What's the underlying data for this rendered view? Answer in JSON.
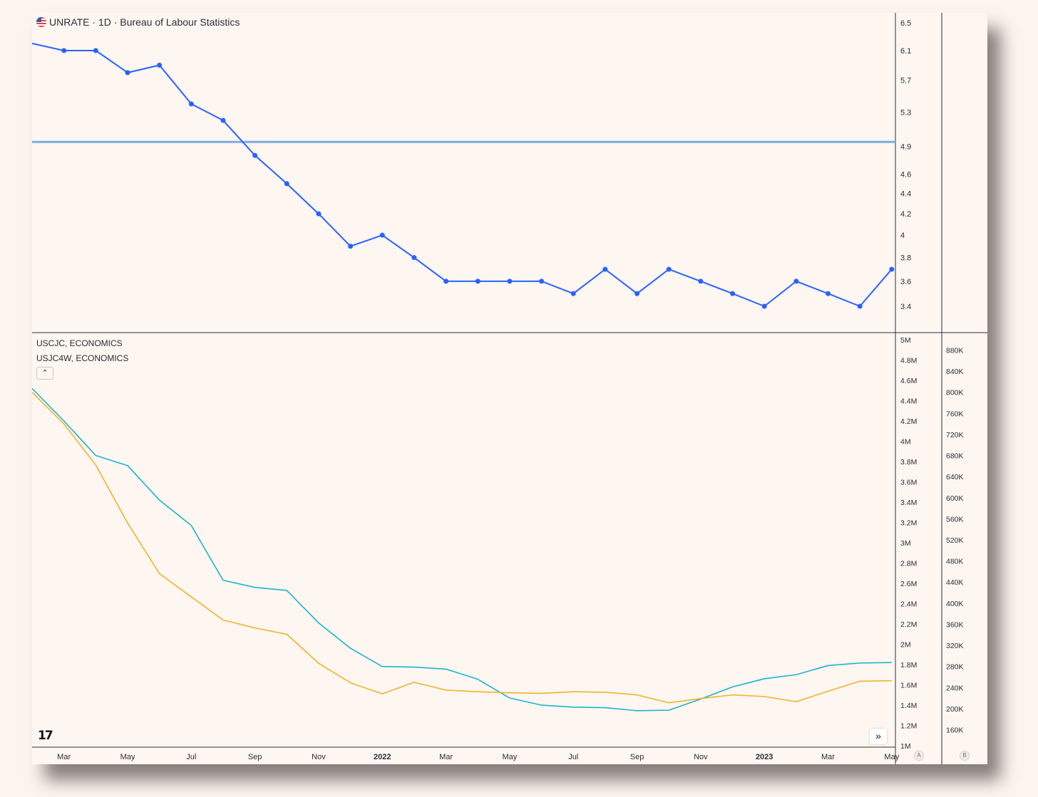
{
  "header": {
    "title": "UNRATE · 1D · Bureau of Labour Statistics",
    "legend_1": "USCJC, ECONOMICS",
    "legend_2": "USJC4W, ECONOMICS",
    "collapse_icon": "chevron-up-icon",
    "logo_text": "17",
    "scroll_icon": "double-chevron-right-icon"
  },
  "axis_buttons": {
    "a": "A",
    "b": "B"
  },
  "chart_data": [
    {
      "type": "line",
      "title": "UNRATE · 1D · Bureau of Labour Statistics",
      "x": [
        "2021-02",
        "2021-03",
        "2021-04",
        "2021-05",
        "2021-06",
        "2021-07",
        "2021-08",
        "2021-09",
        "2021-10",
        "2021-11",
        "2021-12",
        "2022-01",
        "2022-02",
        "2022-03",
        "2022-04",
        "2022-05",
        "2022-06",
        "2022-07",
        "2022-08",
        "2022-09",
        "2022-10",
        "2022-11",
        "2022-12",
        "2023-01",
        "2023-02",
        "2023-03",
        "2023-04",
        "2023-05"
      ],
      "series": [
        {
          "values": [
            6.2,
            6.1,
            6.1,
            5.8,
            5.9,
            5.4,
            5.2,
            4.8,
            4.5,
            4.2,
            3.9,
            4.0,
            3.8,
            3.6,
            3.6,
            3.6,
            3.6,
            3.5,
            3.7,
            3.5,
            3.7,
            3.6,
            3.5,
            3.4,
            3.6,
            3.5,
            3.4,
            3.7
          ],
          "color": "#2962ff",
          "markers": true
        }
      ],
      "horizontal_line": {
        "value": 4.95,
        "color": "#7aaee0"
      },
      "yticks": [
        6.5,
        6.1,
        5.7,
        5.3,
        4.9,
        4.6,
        4.4,
        4.2,
        4,
        3.8,
        3.6,
        3.4
      ],
      "scale": "log",
      "ylim": [
        3.2,
        6.6
      ],
      "grid": false
    },
    {
      "type": "line",
      "legend": [
        "USCJC, ECONOMICS",
        "USJC4W, ECONOMICS"
      ],
      "x": [
        "2021-02",
        "2021-03",
        "2021-04",
        "2021-05",
        "2021-06",
        "2021-07",
        "2021-08",
        "2021-09",
        "2021-10",
        "2021-11",
        "2021-12",
        "2022-01",
        "2022-02",
        "2022-03",
        "2022-04",
        "2022-05",
        "2022-06",
        "2022-07",
        "2022-08",
        "2022-09",
        "2022-10",
        "2022-11",
        "2022-12",
        "2023-01",
        "2023-02",
        "2023-03",
        "2023-04",
        "2023-05"
      ],
      "series": [
        {
          "axis": "left",
          "color": "#1db4c8",
          "values": [
            4520000,
            4200000,
            3860000,
            3760000,
            3420000,
            3170000,
            2630000,
            2560000,
            2530000,
            2210000,
            1960000,
            1780000,
            1775000,
            1755000,
            1655000,
            1470000,
            1400000,
            1380000,
            1375000,
            1345000,
            1350000,
            1460000,
            1580000,
            1660000,
            1700000,
            1790000,
            1815000,
            1820000
          ]
        },
        {
          "axis": "right",
          "color": "#f0b429",
          "values": [
            800000,
            740000,
            662000,
            552000,
            456000,
            412000,
            368000,
            353000,
            341000,
            286000,
            249000,
            228000,
            250000,
            235000,
            232000,
            230000,
            229000,
            232000,
            231000,
            226000,
            211000,
            219000,
            226000,
            223000,
            213000,
            233000,
            252000,
            253000
          ]
        }
      ],
      "yticks_left": [
        "5M",
        "4.8M",
        "4.6M",
        "4.4M",
        "4.2M",
        "4M",
        "3.8M",
        "3.6M",
        "3.4M",
        "3.2M",
        "3M",
        "2.8M",
        "2.6M",
        "2.4M",
        "2.2M",
        "2M",
        "1.8M",
        "1.6M",
        "1.4M",
        "1.2M",
        "1M"
      ],
      "yticks_right": [
        "880K",
        "840K",
        "800K",
        "760K",
        "720K",
        "680K",
        "640K",
        "600K",
        "560K",
        "520K",
        "480K",
        "440K",
        "400K",
        "360K",
        "320K",
        "280K",
        "240K",
        "200K",
        "160K"
      ],
      "ylim_left": [
        1000000,
        5000000
      ],
      "ylim_right": [
        120000,
        900000
      ],
      "grid": false
    }
  ],
  "x_axis_labels": [
    {
      "text": "Mar",
      "month": 1,
      "bold": false
    },
    {
      "text": "May",
      "month": 3,
      "bold": false
    },
    {
      "text": "Jul",
      "month": 5,
      "bold": false
    },
    {
      "text": "Sep",
      "month": 7,
      "bold": false
    },
    {
      "text": "Nov",
      "month": 9,
      "bold": false
    },
    {
      "text": "2022",
      "month": 11,
      "bold": true
    },
    {
      "text": "Mar",
      "month": 13,
      "bold": false
    },
    {
      "text": "May",
      "month": 15,
      "bold": false
    },
    {
      "text": "Jul",
      "month": 17,
      "bold": false
    },
    {
      "text": "Sep",
      "month": 19,
      "bold": false
    },
    {
      "text": "Nov",
      "month": 21,
      "bold": false
    },
    {
      "text": "2023",
      "month": 23,
      "bold": true
    },
    {
      "text": "Mar",
      "month": 25,
      "bold": false
    },
    {
      "text": "May",
      "month": 27,
      "bold": false
    }
  ]
}
